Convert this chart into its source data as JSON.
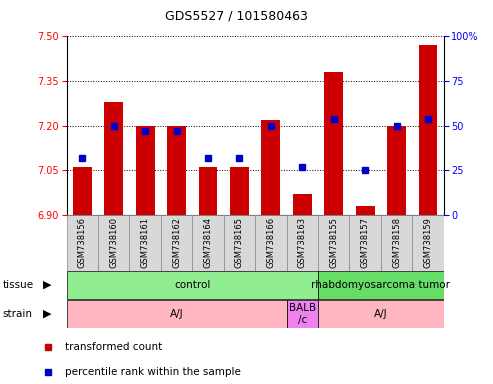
{
  "title": "GDS5527 / 101580463",
  "samples": [
    "GSM738156",
    "GSM738160",
    "GSM738161",
    "GSM738162",
    "GSM738164",
    "GSM738165",
    "GSM738166",
    "GSM738163",
    "GSM738155",
    "GSM738157",
    "GSM738158",
    "GSM738159"
  ],
  "bar_bottom": 6.9,
  "red_values": [
    7.06,
    7.28,
    7.2,
    7.2,
    7.06,
    7.06,
    7.22,
    6.97,
    7.38,
    6.93,
    7.2,
    7.47
  ],
  "blue_percentiles": [
    32,
    50,
    47,
    47,
    32,
    32,
    50,
    27,
    54,
    25,
    50,
    54
  ],
  "ylim_left": [
    6.9,
    7.5
  ],
  "yticks_left": [
    6.9,
    7.05,
    7.2,
    7.35,
    7.5
  ],
  "ylim_right": [
    0,
    100
  ],
  "yticks_right": [
    0,
    25,
    50,
    75,
    100
  ],
  "tissue_groups": [
    {
      "label": "control",
      "start": 0,
      "end": 8,
      "color": "#90EE90"
    },
    {
      "label": "rhabdomyosarcoma tumor",
      "start": 8,
      "end": 12,
      "color": "#66DD66"
    }
  ],
  "strain_groups": [
    {
      "label": "A/J",
      "start": 0,
      "end": 7,
      "color": "#FFB6C1"
    },
    {
      "label": "BALB\n/c",
      "start": 7,
      "end": 8,
      "color": "#EE82EE"
    },
    {
      "label": "A/J",
      "start": 8,
      "end": 12,
      "color": "#FFB6C1"
    }
  ],
  "legend_items": [
    {
      "color": "#CC0000",
      "label": "transformed count"
    },
    {
      "color": "#0000CC",
      "label": "percentile rank within the sample"
    }
  ],
  "red_color": "#CC0000",
  "blue_color": "#0000CC"
}
